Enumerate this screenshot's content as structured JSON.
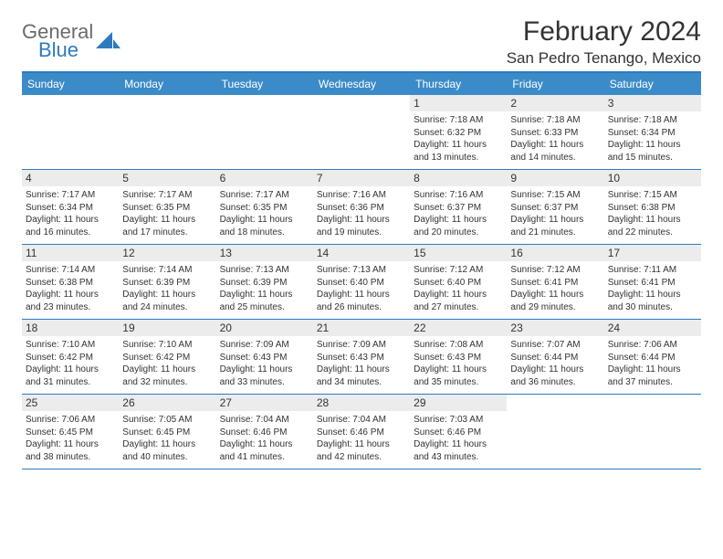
{
  "brand": {
    "word1": "General",
    "word2": "Blue"
  },
  "header": {
    "month_title": "February 2024",
    "location": "San Pedro Tenango, Mexico"
  },
  "colors": {
    "header_bar": "#3b8bc9",
    "rule": "#2f7abf",
    "daynum_bg": "#ececec",
    "text": "#333333",
    "logo_gray": "#6b6b6b",
    "logo_blue": "#2f7abf"
  },
  "days_of_week": [
    "Sunday",
    "Monday",
    "Tuesday",
    "Wednesday",
    "Thursday",
    "Friday",
    "Saturday"
  ],
  "weeks": [
    [
      {
        "n": "",
        "sr": "",
        "ss": "",
        "dl": ""
      },
      {
        "n": "",
        "sr": "",
        "ss": "",
        "dl": ""
      },
      {
        "n": "",
        "sr": "",
        "ss": "",
        "dl": ""
      },
      {
        "n": "",
        "sr": "",
        "ss": "",
        "dl": ""
      },
      {
        "n": "1",
        "sr": "Sunrise: 7:18 AM",
        "ss": "Sunset: 6:32 PM",
        "dl": "Daylight: 11 hours and 13 minutes."
      },
      {
        "n": "2",
        "sr": "Sunrise: 7:18 AM",
        "ss": "Sunset: 6:33 PM",
        "dl": "Daylight: 11 hours and 14 minutes."
      },
      {
        "n": "3",
        "sr": "Sunrise: 7:18 AM",
        "ss": "Sunset: 6:34 PM",
        "dl": "Daylight: 11 hours and 15 minutes."
      }
    ],
    [
      {
        "n": "4",
        "sr": "Sunrise: 7:17 AM",
        "ss": "Sunset: 6:34 PM",
        "dl": "Daylight: 11 hours and 16 minutes."
      },
      {
        "n": "5",
        "sr": "Sunrise: 7:17 AM",
        "ss": "Sunset: 6:35 PM",
        "dl": "Daylight: 11 hours and 17 minutes."
      },
      {
        "n": "6",
        "sr": "Sunrise: 7:17 AM",
        "ss": "Sunset: 6:35 PM",
        "dl": "Daylight: 11 hours and 18 minutes."
      },
      {
        "n": "7",
        "sr": "Sunrise: 7:16 AM",
        "ss": "Sunset: 6:36 PM",
        "dl": "Daylight: 11 hours and 19 minutes."
      },
      {
        "n": "8",
        "sr": "Sunrise: 7:16 AM",
        "ss": "Sunset: 6:37 PM",
        "dl": "Daylight: 11 hours and 20 minutes."
      },
      {
        "n": "9",
        "sr": "Sunrise: 7:15 AM",
        "ss": "Sunset: 6:37 PM",
        "dl": "Daylight: 11 hours and 21 minutes."
      },
      {
        "n": "10",
        "sr": "Sunrise: 7:15 AM",
        "ss": "Sunset: 6:38 PM",
        "dl": "Daylight: 11 hours and 22 minutes."
      }
    ],
    [
      {
        "n": "11",
        "sr": "Sunrise: 7:14 AM",
        "ss": "Sunset: 6:38 PM",
        "dl": "Daylight: 11 hours and 23 minutes."
      },
      {
        "n": "12",
        "sr": "Sunrise: 7:14 AM",
        "ss": "Sunset: 6:39 PM",
        "dl": "Daylight: 11 hours and 24 minutes."
      },
      {
        "n": "13",
        "sr": "Sunrise: 7:13 AM",
        "ss": "Sunset: 6:39 PM",
        "dl": "Daylight: 11 hours and 25 minutes."
      },
      {
        "n": "14",
        "sr": "Sunrise: 7:13 AM",
        "ss": "Sunset: 6:40 PM",
        "dl": "Daylight: 11 hours and 26 minutes."
      },
      {
        "n": "15",
        "sr": "Sunrise: 7:12 AM",
        "ss": "Sunset: 6:40 PM",
        "dl": "Daylight: 11 hours and 27 minutes."
      },
      {
        "n": "16",
        "sr": "Sunrise: 7:12 AM",
        "ss": "Sunset: 6:41 PM",
        "dl": "Daylight: 11 hours and 29 minutes."
      },
      {
        "n": "17",
        "sr": "Sunrise: 7:11 AM",
        "ss": "Sunset: 6:41 PM",
        "dl": "Daylight: 11 hours and 30 minutes."
      }
    ],
    [
      {
        "n": "18",
        "sr": "Sunrise: 7:10 AM",
        "ss": "Sunset: 6:42 PM",
        "dl": "Daylight: 11 hours and 31 minutes."
      },
      {
        "n": "19",
        "sr": "Sunrise: 7:10 AM",
        "ss": "Sunset: 6:42 PM",
        "dl": "Daylight: 11 hours and 32 minutes."
      },
      {
        "n": "20",
        "sr": "Sunrise: 7:09 AM",
        "ss": "Sunset: 6:43 PM",
        "dl": "Daylight: 11 hours and 33 minutes."
      },
      {
        "n": "21",
        "sr": "Sunrise: 7:09 AM",
        "ss": "Sunset: 6:43 PM",
        "dl": "Daylight: 11 hours and 34 minutes."
      },
      {
        "n": "22",
        "sr": "Sunrise: 7:08 AM",
        "ss": "Sunset: 6:43 PM",
        "dl": "Daylight: 11 hours and 35 minutes."
      },
      {
        "n": "23",
        "sr": "Sunrise: 7:07 AM",
        "ss": "Sunset: 6:44 PM",
        "dl": "Daylight: 11 hours and 36 minutes."
      },
      {
        "n": "24",
        "sr": "Sunrise: 7:06 AM",
        "ss": "Sunset: 6:44 PM",
        "dl": "Daylight: 11 hours and 37 minutes."
      }
    ],
    [
      {
        "n": "25",
        "sr": "Sunrise: 7:06 AM",
        "ss": "Sunset: 6:45 PM",
        "dl": "Daylight: 11 hours and 38 minutes."
      },
      {
        "n": "26",
        "sr": "Sunrise: 7:05 AM",
        "ss": "Sunset: 6:45 PM",
        "dl": "Daylight: 11 hours and 40 minutes."
      },
      {
        "n": "27",
        "sr": "Sunrise: 7:04 AM",
        "ss": "Sunset: 6:46 PM",
        "dl": "Daylight: 11 hours and 41 minutes."
      },
      {
        "n": "28",
        "sr": "Sunrise: 7:04 AM",
        "ss": "Sunset: 6:46 PM",
        "dl": "Daylight: 11 hours and 42 minutes."
      },
      {
        "n": "29",
        "sr": "Sunrise: 7:03 AM",
        "ss": "Sunset: 6:46 PM",
        "dl": "Daylight: 11 hours and 43 minutes."
      },
      {
        "n": "",
        "sr": "",
        "ss": "",
        "dl": ""
      },
      {
        "n": "",
        "sr": "",
        "ss": "",
        "dl": ""
      }
    ]
  ]
}
